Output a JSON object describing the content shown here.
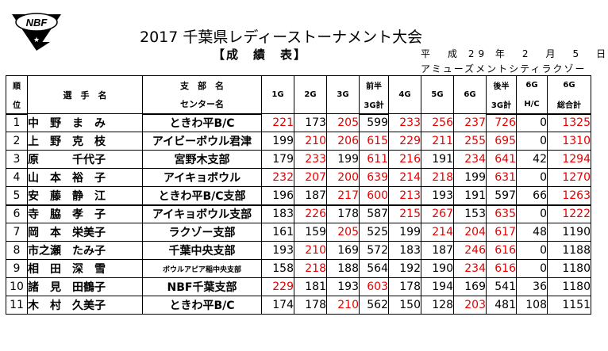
{
  "logo": {
    "text": "NBF",
    "icon": "nbf-logo-icon"
  },
  "header": {
    "title": "2017  千葉県レディーストーナメント大会",
    "subtitle": "【成　績　表】",
    "date": "平　成 29 年　2　月　5　日",
    "venue": "アミューズメントシティラクゾー"
  },
  "columns": {
    "rank_top": "順",
    "rank_bottom": "位",
    "name": "選　手　名",
    "branch_top": "支　部　名",
    "branch_bottom": "センター名",
    "g1": "1G",
    "g2": "2G",
    "g3": "3G",
    "first_half_top": "前半",
    "first_half_bottom": "3G計",
    "g4": "4G",
    "g5": "5G",
    "g6": "6G",
    "second_half_top": "後半",
    "second_half_bottom": "3G計",
    "hc_top": "6G",
    "hc_bottom": "H/C",
    "total_top": "6G",
    "total_bottom": "総合計"
  },
  "rows": [
    {
      "rank": "1",
      "name": "中　野　ま　み",
      "branch": "ときわ平B/C",
      "g1": "221",
      "g2": "173",
      "g3": "205",
      "h1": "599",
      "g4": "233",
      "g5": "256",
      "g6": "237",
      "h2": "726",
      "hc": "0",
      "total": "1325"
    },
    {
      "rank": "2",
      "name": "上　野　克　枝",
      "branch": "アイビーボウル君津",
      "g1": "199",
      "g2": "210",
      "g3": "206",
      "h1": "615",
      "g4": "229",
      "g5": "211",
      "g6": "255",
      "h2": "695",
      "hc": "0",
      "total": "1310"
    },
    {
      "rank": "3",
      "name": "原　　　千代子",
      "branch": "宮野木支部",
      "g1": "179",
      "g2": "233",
      "g3": "199",
      "h1": "611",
      "g4": "216",
      "g5": "191",
      "g6": "234",
      "h2": "641",
      "hc": "42",
      "total": "1294"
    },
    {
      "rank": "4",
      "name": "山　本　裕　子",
      "branch": "アイキョボウル",
      "g1": "232",
      "g2": "207",
      "g3": "200",
      "h1": "639",
      "g4": "214",
      "g5": "218",
      "g6": "199",
      "h2": "631",
      "hc": "0",
      "total": "1270"
    },
    {
      "rank": "5",
      "name": "安　藤　静　江",
      "branch": "ときわ平B/C支部",
      "g1": "196",
      "g2": "187",
      "g3": "217",
      "h1": "600",
      "g4": "213",
      "g5": "193",
      "g6": "191",
      "h2": "597",
      "hc": "66",
      "total": "1263"
    },
    {
      "rank": "6",
      "name": "寺　脇　孝　子",
      "branch": "アイキョボウル支部",
      "g1": "183",
      "g2": "226",
      "g3": "178",
      "h1": "587",
      "g4": "215",
      "g5": "267",
      "g6": "153",
      "h2": "635",
      "hc": "0",
      "total": "1222"
    },
    {
      "rank": "7",
      "name": "岡　本　栄美子",
      "branch": "ラクゾー支部",
      "g1": "161",
      "g2": "159",
      "g3": "205",
      "h1": "525",
      "g4": "199",
      "g5": "214",
      "g6": "204",
      "h2": "617",
      "hc": "48",
      "total": "1190"
    },
    {
      "rank": "8",
      "name": "市之瀬　たみ子",
      "branch": "千葉中央支部",
      "g1": "193",
      "g2": "210",
      "g3": "169",
      "h1": "572",
      "g4": "183",
      "g5": "187",
      "g6": "246",
      "h2": "616",
      "hc": "0",
      "total": "1188"
    },
    {
      "rank": "9",
      "name": "相　田　深　雪",
      "branch": "ボウルアピア稲中央支部",
      "g1": "158",
      "g2": "218",
      "g3": "188",
      "h1": "564",
      "g4": "192",
      "g5": "190",
      "g6": "234",
      "h2": "616",
      "hc": "0",
      "total": "1180"
    },
    {
      "rank": "10",
      "name": "諸　見　田鶴子",
      "branch": "NBF千葉支部",
      "g1": "229",
      "g2": "181",
      "g3": "193",
      "h1": "603",
      "g4": "178",
      "g5": "194",
      "g6": "169",
      "h2": "541",
      "hc": "36",
      "total": "1180"
    },
    {
      "rank": "11",
      "name": "木　村　久美子",
      "branch": "ときわ平B/C",
      "g1": "174",
      "g2": "178",
      "g3": "210",
      "h1": "562",
      "g4": "150",
      "g5": "128",
      "g6": "203",
      "h2": "481",
      "hc": "108",
      "total": "1151"
    }
  ],
  "style": {
    "red_threshold": 200,
    "total_red_threshold": 1200,
    "red": "#e60000"
  }
}
